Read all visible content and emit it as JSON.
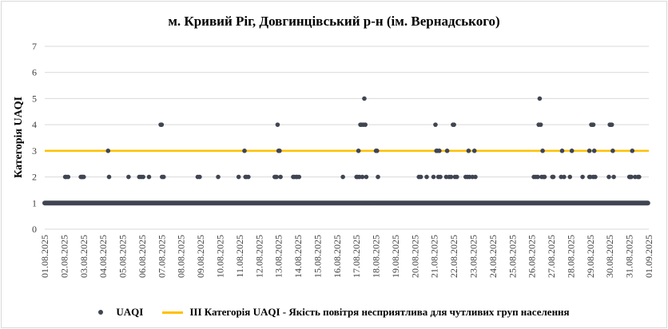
{
  "chart_data": {
    "type": "scatter",
    "title": "м. Кривий Ріг, Довгинцівський р-н (ім. Вернадського)",
    "ylabel": "Категорія UAQI",
    "xlabel": "",
    "ylim": [
      0,
      7
    ],
    "yticks": [
      0,
      1,
      2,
      3,
      4,
      5,
      6,
      7
    ],
    "grid": "horizontal",
    "legend": "bottom",
    "categories": [
      "01.08.2025",
      "02.08.2025",
      "03.08.2025",
      "04.08.2025",
      "05.08.2025",
      "06.08.2025",
      "07.08.2025",
      "08.08.2025",
      "09.08.2025",
      "10.08.2025",
      "11.08.2025",
      "12.08.2025",
      "13.08.2025",
      "14.08.2025",
      "15.08.2025",
      "16.08.2025",
      "17.08.2025",
      "18.08.2025",
      "19.08.2025",
      "20.08.2025",
      "21.08.2025",
      "22.08.2025",
      "23.08.2025",
      "24.08.2025",
      "25.08.2025",
      "26.08.2025",
      "27.08.2025",
      "28.08.2025",
      "29.08.2025",
      "30.08.2025",
      "31.08.2025",
      "01.09.2025"
    ],
    "baseline": {
      "x_start": 0,
      "x_end": 30.95,
      "y": 1
    },
    "series": [
      {
        "name": "UAQI",
        "color": "#404552",
        "points": [
          [
            1.05,
            2
          ],
          [
            1.1,
            2
          ],
          [
            1.2,
            2
          ],
          [
            1.85,
            2
          ],
          [
            1.9,
            2
          ],
          [
            1.95,
            2
          ],
          [
            2.0,
            2
          ],
          [
            3.25,
            3
          ],
          [
            3.3,
            2
          ],
          [
            4.3,
            2
          ],
          [
            4.85,
            2
          ],
          [
            4.95,
            2
          ],
          [
            5.05,
            2
          ],
          [
            5.35,
            2
          ],
          [
            5.95,
            4
          ],
          [
            6.0,
            4
          ],
          [
            6.02,
            2
          ],
          [
            6.1,
            2
          ],
          [
            7.85,
            2
          ],
          [
            7.95,
            2
          ],
          [
            8.9,
            2
          ],
          [
            9.95,
            2
          ],
          [
            10.25,
            3
          ],
          [
            10.3,
            2
          ],
          [
            10.35,
            2
          ],
          [
            10.45,
            2
          ],
          [
            11.8,
            2
          ],
          [
            11.85,
            2
          ],
          [
            11.9,
            2
          ],
          [
            11.95,
            4
          ],
          [
            12.0,
            3
          ],
          [
            12.05,
            3
          ],
          [
            12.1,
            2
          ],
          [
            12.75,
            2
          ],
          [
            12.8,
            2
          ],
          [
            12.9,
            2
          ],
          [
            12.95,
            2
          ],
          [
            13.05,
            2
          ],
          [
            15.3,
            2
          ],
          [
            16.0,
            2
          ],
          [
            16.05,
            2
          ],
          [
            16.1,
            3
          ],
          [
            16.15,
            2
          ],
          [
            16.2,
            4
          ],
          [
            16.25,
            4
          ],
          [
            16.3,
            2
          ],
          [
            16.35,
            4
          ],
          [
            16.4,
            5
          ],
          [
            16.45,
            4
          ],
          [
            16.5,
            2
          ],
          [
            16.6,
            1
          ],
          [
            16.7,
            1
          ],
          [
            17.0,
            3
          ],
          [
            17.05,
            3
          ],
          [
            17.1,
            2
          ],
          [
            19.2,
            2
          ],
          [
            19.3,
            2
          ],
          [
            19.6,
            2
          ],
          [
            19.95,
            2
          ],
          [
            20.05,
            4
          ],
          [
            20.1,
            3
          ],
          [
            20.15,
            3
          ],
          [
            20.2,
            2
          ],
          [
            20.25,
            3
          ],
          [
            20.3,
            2
          ],
          [
            20.6,
            2
          ],
          [
            20.65,
            3
          ],
          [
            20.75,
            2
          ],
          [
            20.85,
            2
          ],
          [
            20.95,
            4
          ],
          [
            21.0,
            4
          ],
          [
            21.05,
            2
          ],
          [
            21.15,
            2
          ],
          [
            21.6,
            2
          ],
          [
            21.75,
            3
          ],
          [
            21.7,
            2
          ],
          [
            21.8,
            2
          ],
          [
            21.95,
            2
          ],
          [
            22.05,
            3
          ],
          [
            22.1,
            2
          ],
          [
            25.1,
            2
          ],
          [
            25.2,
            2
          ],
          [
            25.3,
            2
          ],
          [
            25.35,
            4
          ],
          [
            25.4,
            5
          ],
          [
            25.45,
            4
          ],
          [
            25.5,
            2
          ],
          [
            25.55,
            3
          ],
          [
            25.6,
            2
          ],
          [
            25.65,
            2
          ],
          [
            26.05,
            2
          ],
          [
            26.1,
            2
          ],
          [
            26.5,
            2
          ],
          [
            26.55,
            3
          ],
          [
            26.65,
            2
          ],
          [
            26.95,
            2
          ],
          [
            27.05,
            3
          ],
          [
            27.6,
            2
          ],
          [
            27.95,
            2
          ],
          [
            27.95,
            3
          ],
          [
            28.0,
            2
          ],
          [
            28.05,
            4
          ],
          [
            28.1,
            4
          ],
          [
            28.15,
            2
          ],
          [
            28.15,
            4
          ],
          [
            28.2,
            3
          ],
          [
            28.25,
            2
          ],
          [
            28.95,
            2
          ],
          [
            29.0,
            4
          ],
          [
            29.05,
            4
          ],
          [
            29.1,
            4
          ],
          [
            29.15,
            3
          ],
          [
            29.2,
            2
          ],
          [
            30.0,
            2
          ],
          [
            30.05,
            2
          ],
          [
            30.1,
            2
          ],
          [
            30.15,
            3
          ],
          [
            30.3,
            2
          ],
          [
            30.45,
            2
          ],
          [
            30.5,
            2
          ]
        ]
      },
      {
        "name": "ІІІ Категорія UAQI - Якість повітря несприятлива для чутливих груп населення",
        "color": "#ffc000",
        "type": "line",
        "x": [
          0,
          31
        ],
        "values": [
          3,
          3
        ]
      }
    ]
  }
}
